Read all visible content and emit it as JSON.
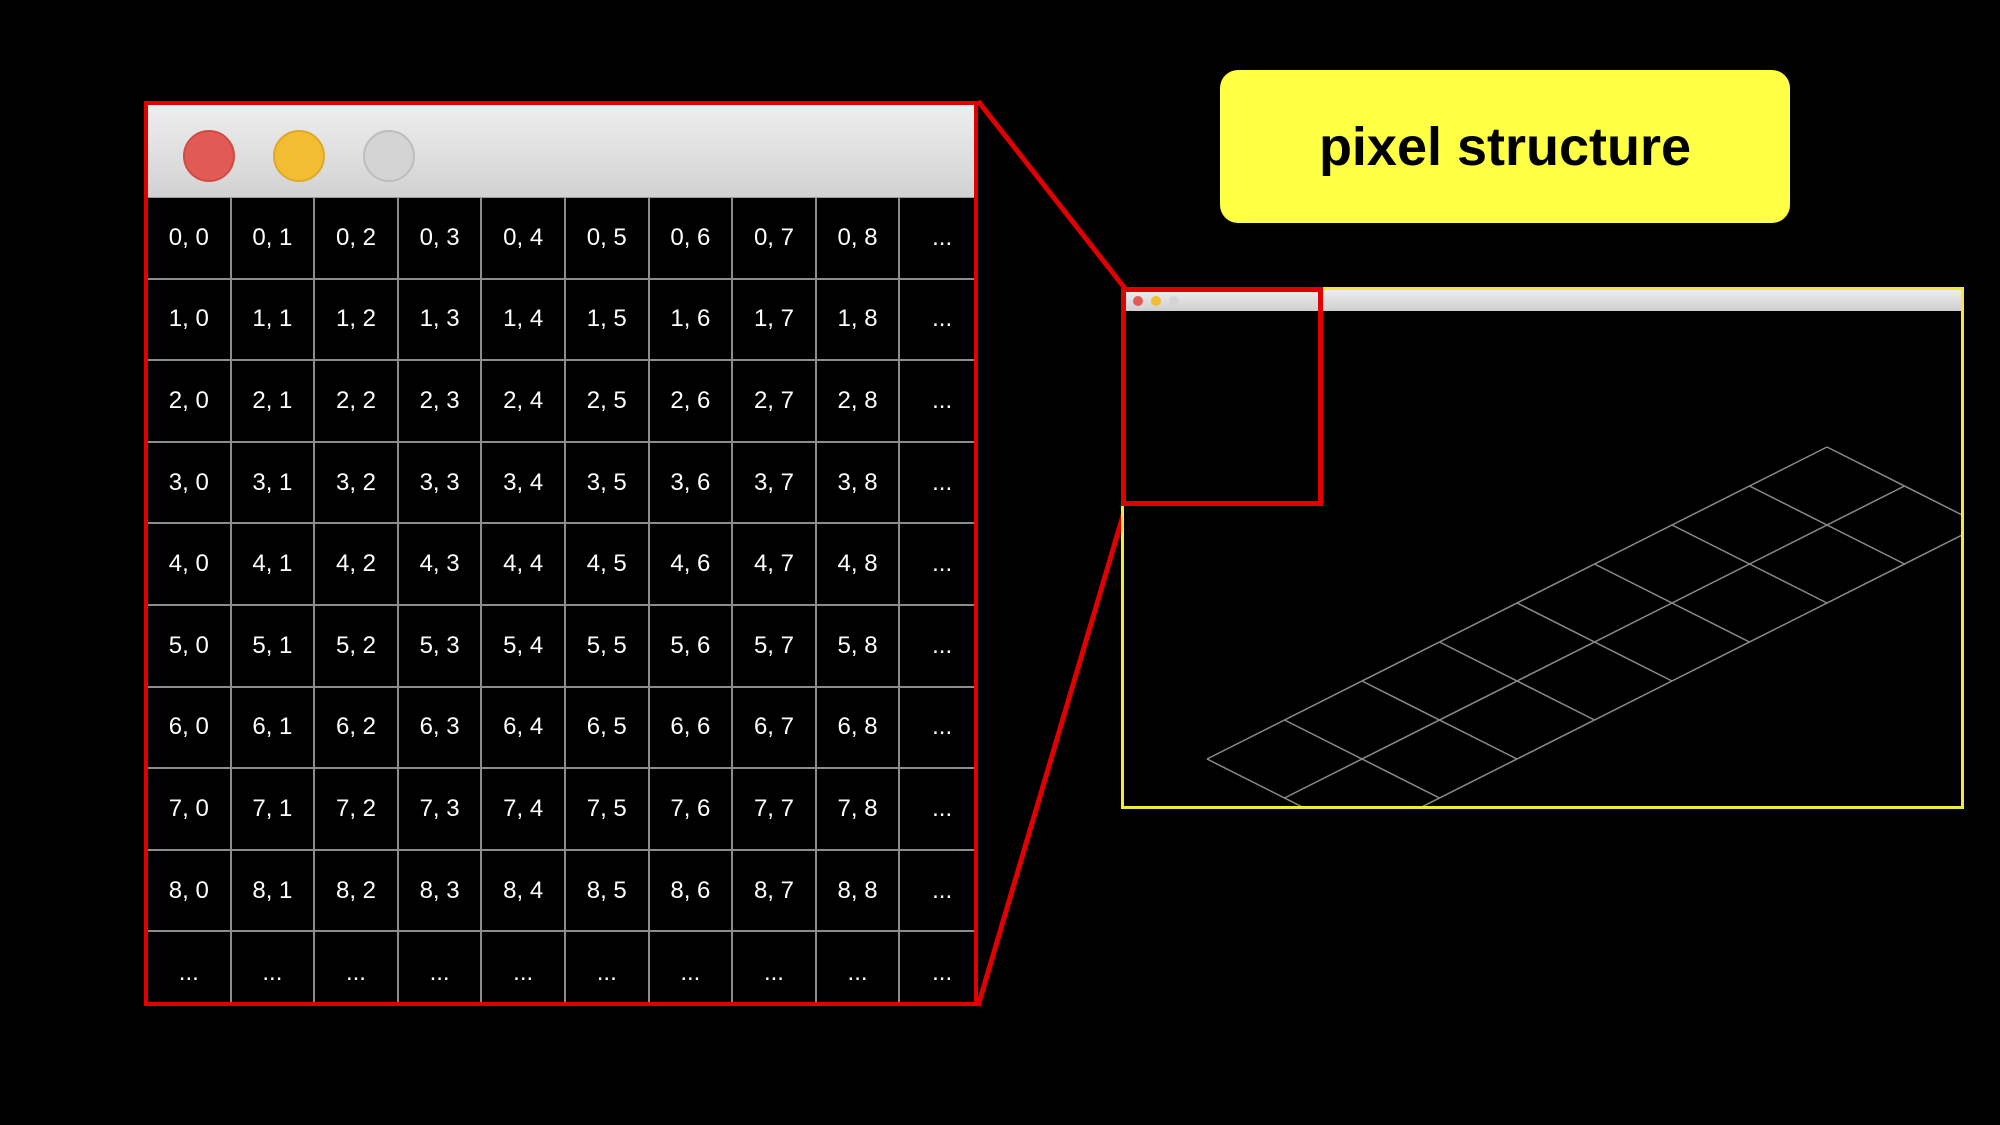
{
  "title": "pixel structure",
  "grid": {
    "rows": [
      [
        "0, 0",
        "0, 1",
        "0, 2",
        "0, 3",
        "0, 4",
        "0, 5",
        "0, 6",
        "0, 7",
        "0, 8",
        "..."
      ],
      [
        "1, 0",
        "1, 1",
        "1, 2",
        "1, 3",
        "1, 4",
        "1, 5",
        "1, 6",
        "1, 7",
        "1, 8",
        "..."
      ],
      [
        "2, 0",
        "2, 1",
        "2, 2",
        "2, 3",
        "2, 4",
        "2, 5",
        "2, 6",
        "2, 7",
        "2, 8",
        "..."
      ],
      [
        "3, 0",
        "3, 1",
        "3, 2",
        "3, 3",
        "3, 4",
        "3, 5",
        "3, 6",
        "3, 7",
        "3, 8",
        "..."
      ],
      [
        "4, 0",
        "4, 1",
        "4, 2",
        "4, 3",
        "4, 4",
        "4, 5",
        "4, 6",
        "4, 7",
        "4, 8",
        "..."
      ],
      [
        "5, 0",
        "5, 1",
        "5, 2",
        "5, 3",
        "5, 4",
        "5, 5",
        "5, 6",
        "5, 7",
        "5, 8",
        "..."
      ],
      [
        "6, 0",
        "6, 1",
        "6, 2",
        "6, 3",
        "6, 4",
        "6, 5",
        "6, 6",
        "6, 7",
        "6, 8",
        "..."
      ],
      [
        "7, 0",
        "7, 1",
        "7, 2",
        "7, 3",
        "7, 4",
        "7, 5",
        "7, 6",
        "7, 7",
        "7, 8",
        "..."
      ],
      [
        "8, 0",
        "8, 1",
        "8, 2",
        "8, 3",
        "8, 4",
        "8, 5",
        "8, 6",
        "8, 7",
        "8, 8",
        "..."
      ],
      [
        "...",
        "...",
        "...",
        "...",
        "...",
        "...",
        "...",
        "...",
        "...",
        "..."
      ]
    ]
  },
  "colors": {
    "background": "#000000",
    "zoom_frame": "#e00000",
    "small_window_frame": "#f2ea3a",
    "title_badge": "#ffff44",
    "grid_lines": "#8c8c8c",
    "iso_lines": "#8a8a8a",
    "close_dot": "#e15a55",
    "minimize_dot": "#f2bc33",
    "maximize_dot": "#d4d4d4"
  }
}
